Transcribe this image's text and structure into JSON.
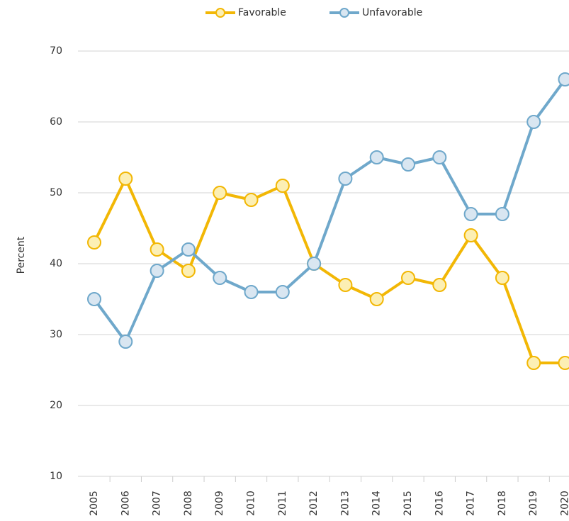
{
  "chart_data": {
    "type": "line",
    "y_label": "Percent",
    "categories": [
      "2005",
      "2006",
      "2007",
      "2008",
      "2009",
      "2010",
      "2011",
      "2012",
      "2013",
      "2014",
      "2015",
      "2016",
      "2017",
      "2018",
      "2019",
      "2020"
    ],
    "series": [
      {
        "name": "Favorable",
        "color": "#f2b705",
        "marker_fill": "#fcefb4",
        "values": [
          43,
          52,
          42,
          39,
          50,
          49,
          51,
          40,
          37,
          35,
          38,
          37,
          44,
          38,
          26,
          26
        ]
      },
      {
        "name": "Unfavorable",
        "color": "#6fa8cb",
        "marker_fill": "#d9e6f1",
        "values": [
          35,
          29,
          39,
          42,
          38,
          36,
          36,
          40,
          52,
          55,
          54,
          55,
          47,
          47,
          60,
          66
        ]
      }
    ],
    "ylim": [
      10,
      70
    ],
    "yticks": [
      10,
      20,
      30,
      40,
      50,
      60,
      70
    ],
    "grid": true
  }
}
